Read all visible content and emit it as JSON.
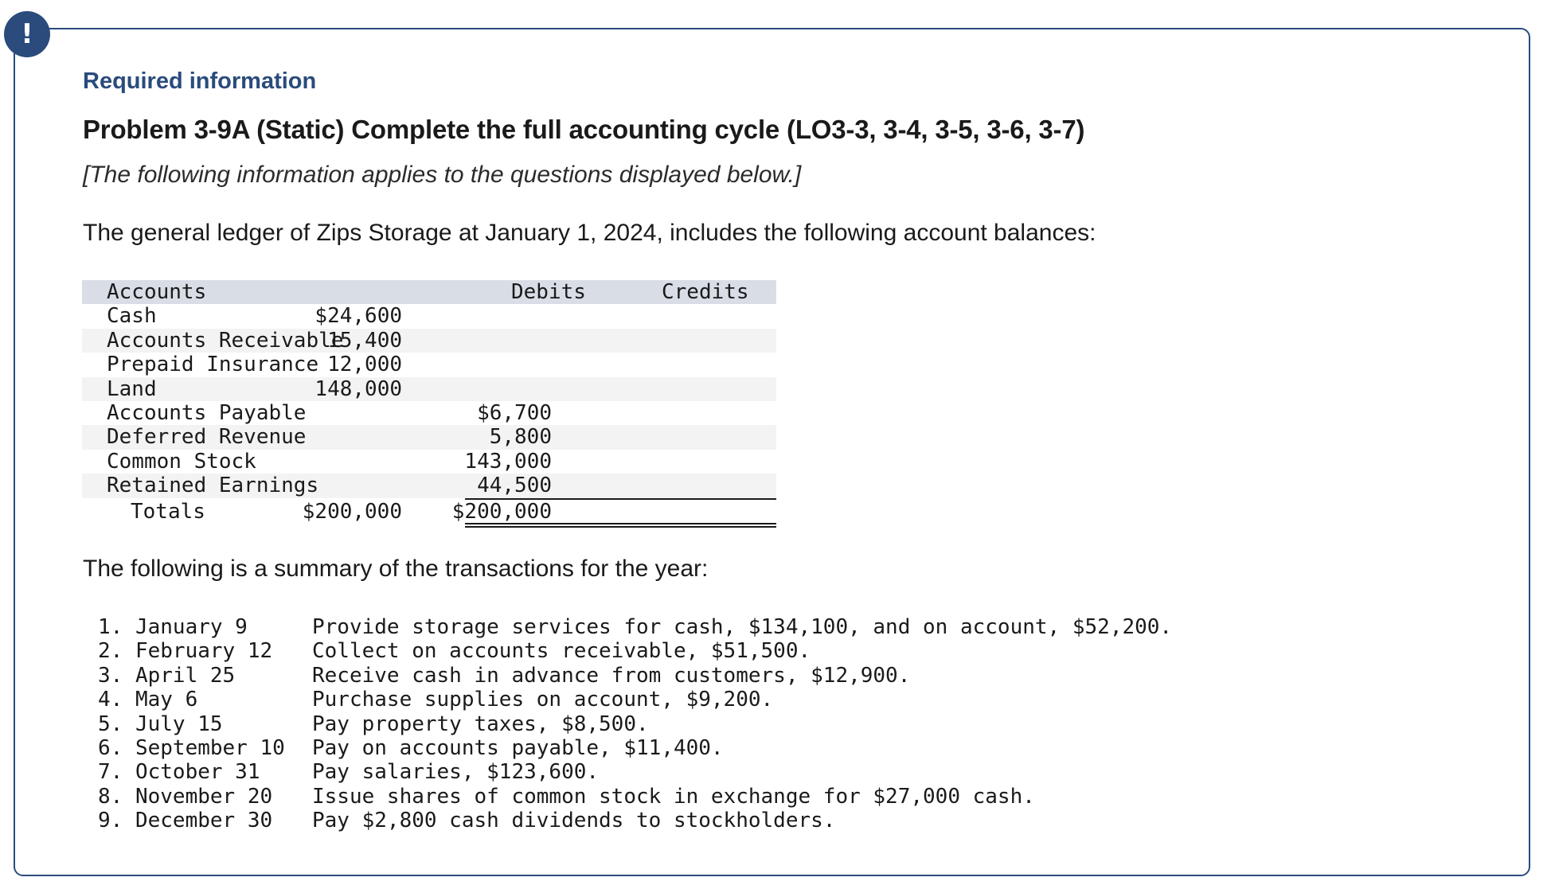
{
  "alert_icon_glyph": "!",
  "header": {
    "required_info": "Required information",
    "problem_title": "Problem 3-9A (Static) Complete the full accounting cycle (LO3-3, 3-4, 3-5, 3-6, 3-7)",
    "note": "[The following information applies to the questions displayed below.]"
  },
  "intro_text": "The general ledger of Zips Storage at January 1, 2024, includes the following account balances:",
  "ledger": {
    "headers": {
      "account": "Accounts",
      "debits": "Debits",
      "credits": "Credits"
    },
    "rows": [
      {
        "account": "Cash",
        "debit": "$24,600",
        "credit": ""
      },
      {
        "account": "Accounts Receivable",
        "debit": "15,400",
        "credit": ""
      },
      {
        "account": "Prepaid Insurance",
        "debit": "12,000",
        "credit": ""
      },
      {
        "account": "Land",
        "debit": "148,000",
        "credit": ""
      },
      {
        "account": "Accounts Payable",
        "debit": "",
        "credit": "$6,700"
      },
      {
        "account": "Deferred Revenue",
        "debit": "",
        "credit": "5,800"
      },
      {
        "account": "Common Stock",
        "debit": "",
        "credit": "143,000"
      },
      {
        "account": "Retained Earnings",
        "debit": "",
        "credit": "44,500"
      }
    ],
    "totals": {
      "label": "Totals",
      "debit": "$200,000",
      "credit": "$200,000"
    }
  },
  "summary_text": "The following is a summary of the transactions for the year:",
  "transactions": [
    {
      "date": "1. January 9",
      "description": "Provide storage services for cash, $134,100, and on account, $52,200."
    },
    {
      "date": "2. February 12",
      "description": "Collect on accounts receivable, $51,500."
    },
    {
      "date": "3. April 25",
      "description": "Receive cash in advance from customers, $12,900."
    },
    {
      "date": "4. May 6",
      "description": "Purchase supplies on account, $9,200."
    },
    {
      "date": "5. July 15",
      "description": "Pay property taxes, $8,500."
    },
    {
      "date": "6. September 10",
      "description": "Pay on accounts payable, $11,400."
    },
    {
      "date": "7. October 31",
      "description": "Pay salaries, $123,600."
    },
    {
      "date": "8. November 20",
      "description": "Issue shares of common stock in exchange for $27,000 cash."
    },
    {
      "date": "9. December 30",
      "description": "Pay $2,800 cash dividends to stockholders."
    }
  ],
  "colors": {
    "accent": "#2a4b7c",
    "header_row": "#d8dde6",
    "zebra_row": "#f3f3f3"
  }
}
